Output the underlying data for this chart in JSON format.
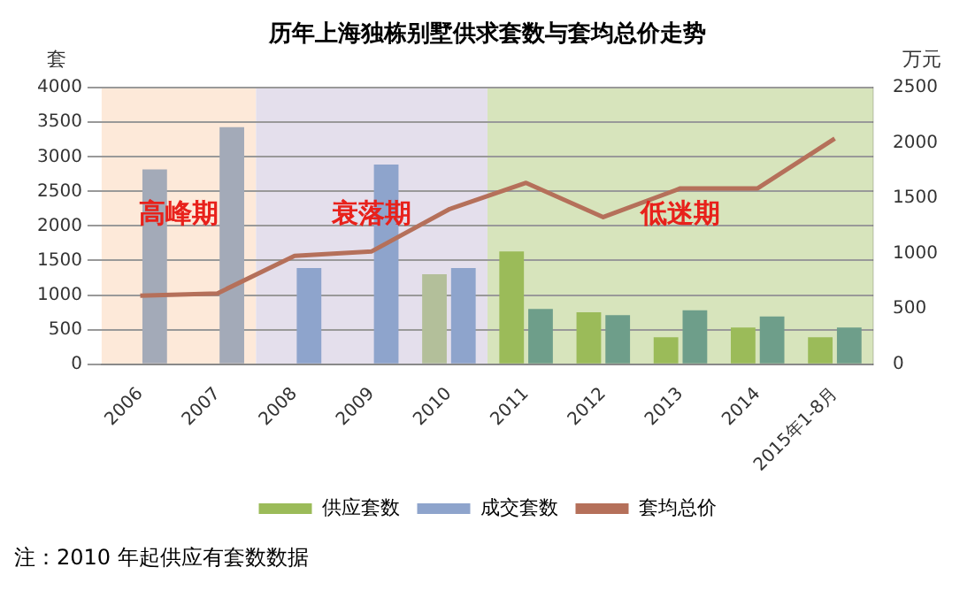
{
  "chart_data": {
    "type": "bar",
    "title": "历年上海独栋别墅供求套数与套均总价走势",
    "ylabel": "套",
    "y2label": "万元",
    "categories": [
      "2006",
      "2007",
      "2008",
      "2009",
      "2010",
      "2011",
      "2012",
      "2013",
      "2014",
      "2015年1-8月"
    ],
    "series": [
      {
        "name": "供应套数",
        "color": "#9bbb59",
        "colors": [
          null,
          null,
          null,
          null,
          "#b3bf9a",
          "#9bbb59",
          "#9bbb59",
          "#9bbb59",
          "#9bbb59",
          "#9bbb59"
        ],
        "values": [
          null,
          null,
          null,
          null,
          1300,
          1630,
          750,
          390,
          530,
          390
        ]
      },
      {
        "name": "成交套数",
        "color": "#8ea4cc",
        "colors": [
          "#a3aab8",
          "#a3aab8",
          "#8ea4cc",
          "#8ea4cc",
          "#8ea4cc",
          "#6e9e8a",
          "#6e9e8a",
          "#6e9e8a",
          "#6e9e8a",
          "#6e9e8a"
        ],
        "values": [
          2820,
          3430,
          1390,
          2890,
          1390,
          800,
          710,
          780,
          690,
          530
        ]
      },
      {
        "name": "套均总价",
        "type": "line",
        "axis": "y2",
        "color": "#b5705a",
        "marker": "none",
        "values": [
          620,
          640,
          980,
          1020,
          1400,
          1640,
          1330,
          1590,
          1590,
          2040
        ]
      }
    ],
    "ylim": [
      0,
      4000
    ],
    "yticks": [
      0,
      500,
      1000,
      1500,
      2000,
      2500,
      3000,
      3500,
      4000
    ],
    "y2lim": [
      0,
      2500
    ],
    "y2ticks": [
      0,
      500,
      1000,
      1500,
      2000,
      2500
    ],
    "bands": [
      {
        "axis": "x",
        "from": "2006",
        "to": "2007",
        "label": "高峰期",
        "color": "#fde9d9"
      },
      {
        "axis": "x",
        "from": "2008",
        "to": "2010",
        "label": "衰落期",
        "color": "#e4dfec"
      },
      {
        "axis": "x",
        "from": "2011",
        "to": "2015年1-8月",
        "label": "低迷期",
        "color": "#d7e4bc"
      }
    ],
    "grid": "y",
    "legend": "bottom",
    "annotations": [
      "注：2010 年起供应有套数数据"
    ]
  }
}
